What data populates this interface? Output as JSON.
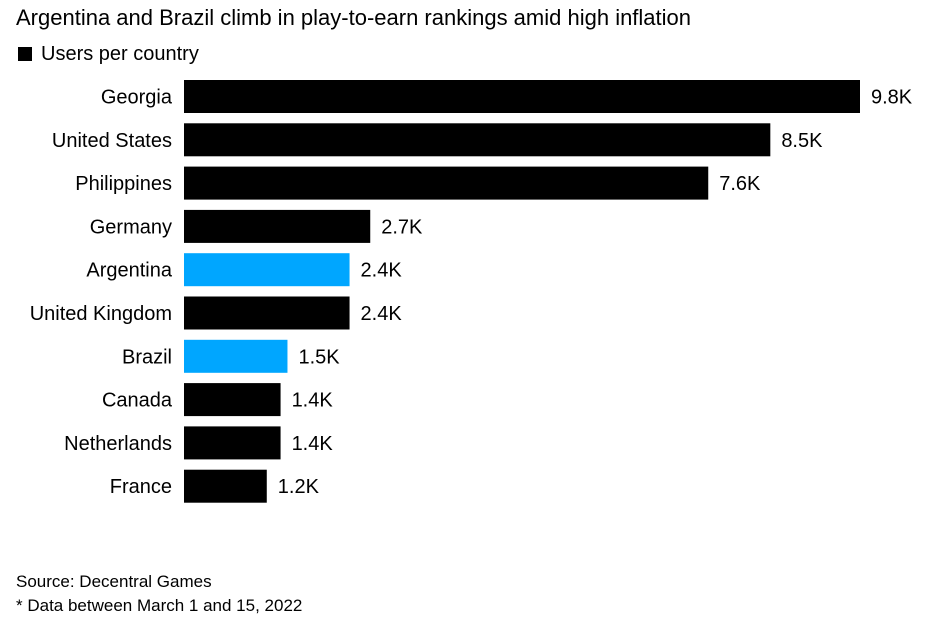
{
  "chart_data": {
    "type": "bar",
    "orientation": "horizontal",
    "title": "Argentina and Brazil climb in play-to-earn rankings amid high inflation",
    "legend": [
      {
        "label": "Users per country",
        "color": "#000000"
      }
    ],
    "legend_placement": "top-left",
    "categories": [
      "Georgia",
      "United States",
      "Philippines",
      "Germany",
      "Argentina",
      "United Kingdom",
      "Brazil",
      "Canada",
      "Netherlands",
      "France"
    ],
    "values": [
      9.8,
      8.5,
      7.6,
      2.7,
      2.4,
      2.4,
      1.5,
      1.4,
      1.4,
      1.2
    ],
    "value_labels": [
      "9.8K",
      "8.5K",
      "7.6K",
      "2.7K",
      "2.4K",
      "2.4K",
      "1.5K",
      "1.4K",
      "1.4K",
      "1.2K"
    ],
    "value_unit": "thousand users",
    "bar_colors": [
      "#000000",
      "#000000",
      "#000000",
      "#000000",
      "#00a6ff",
      "#000000",
      "#00a6ff",
      "#000000",
      "#000000",
      "#000000"
    ],
    "highlight_color": "#00a6ff",
    "default_color": "#000000",
    "xlim": [
      0,
      9.8
    ],
    "grid": false
  },
  "footer": {
    "source": "Source: Decentral Games",
    "note": "* Data between March 1 and 15, 2022"
  }
}
